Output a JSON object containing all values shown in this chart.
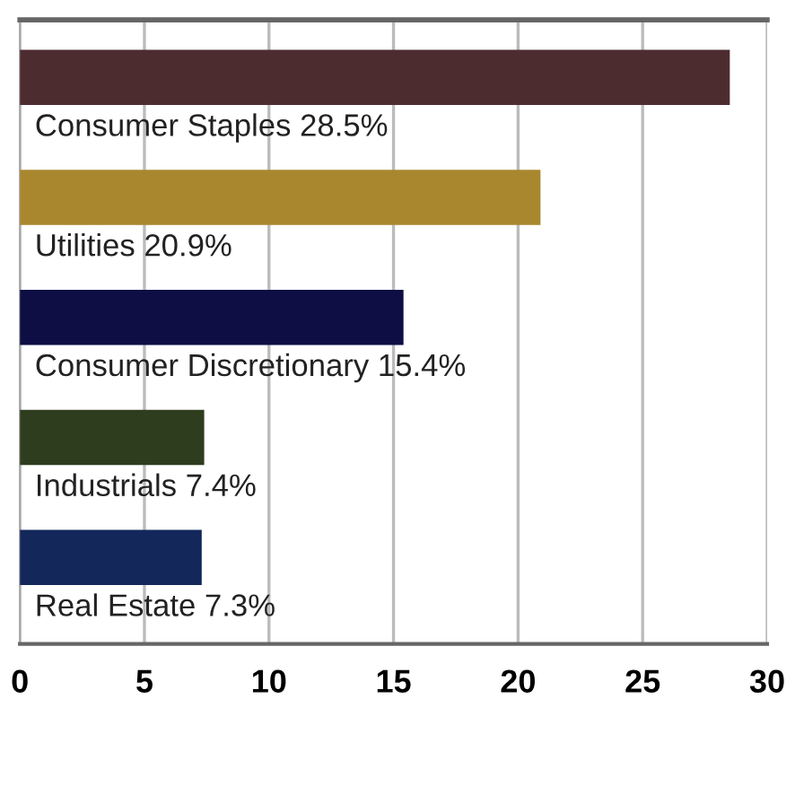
{
  "chart_data": {
    "type": "bar",
    "orientation": "horizontal",
    "categories": [
      "Consumer Staples",
      "Utilities",
      "Consumer Discretionary",
      "Industrials",
      "Real Estate"
    ],
    "values": [
      28.5,
      20.9,
      15.4,
      7.4,
      7.3
    ],
    "value_labels": [
      "28.5%",
      "20.9%",
      "15.4%",
      "7.4%",
      "7.3%"
    ],
    "colors": [
      "#4d2c30",
      "#a8872f",
      "#0e0e45",
      "#2f3d1f",
      "#13275a"
    ],
    "xlim": [
      0,
      30
    ],
    "xticks": [
      0,
      5,
      10,
      15,
      20,
      25,
      30
    ],
    "grid": "x",
    "tick_labels": "x"
  }
}
